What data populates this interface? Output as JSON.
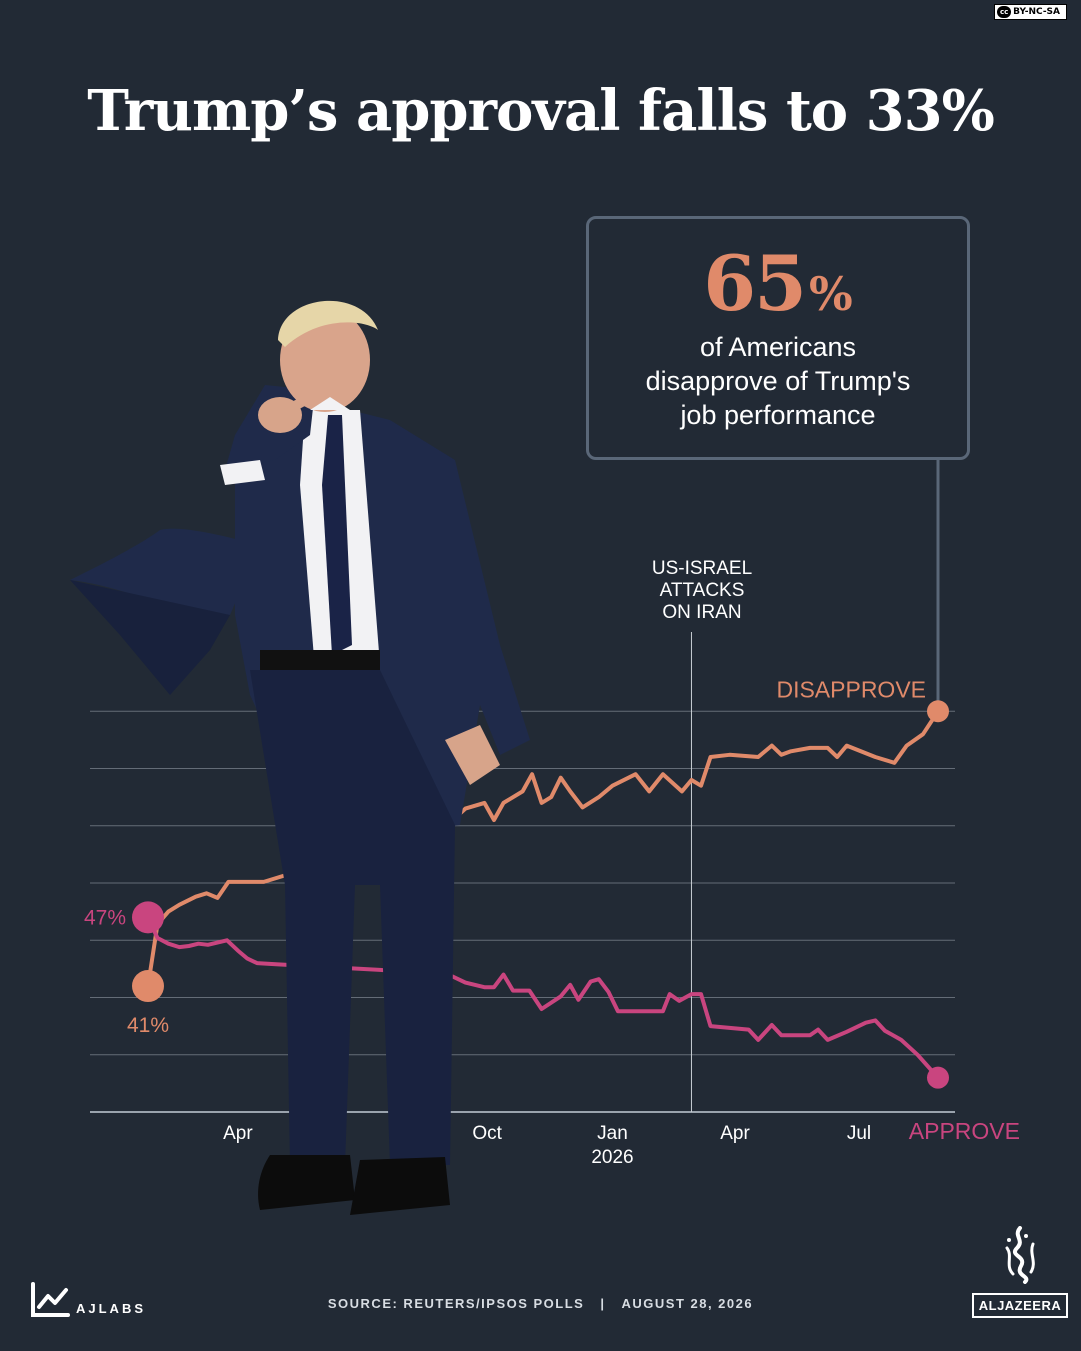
{
  "license": "BY-NC-SA",
  "license_badge": "cc",
  "title": "Trump’s approval falls to 33%",
  "callout": {
    "value": "65",
    "unit": "%",
    "text_lines": [
      "of Americans",
      "disapprove of Trump's",
      "job performance"
    ]
  },
  "event_annotation": [
    "US-ISRAEL",
    "ATTACKS",
    "ON IRAN"
  ],
  "footer": {
    "brand": "AJLABS",
    "source": "SOURCE:  REUTERS/IPSOS POLLS",
    "separator": "|",
    "date": "AUGUST 28, 2026",
    "publisher": "ALJAZEERA"
  },
  "colors": {
    "background": "#222a35",
    "disapprove": "#e08a6a",
    "approve": "#c9457f",
    "grid": "#9aa3ad",
    "callout_border": "#5a6778"
  },
  "icons": [
    "ajlabs-chart-logo-icon",
    "aljazeera-calligraphy-logo-icon",
    "creative-commons-icon",
    "trump-pointing-photo"
  ],
  "chart_data": {
    "type": "line",
    "title": "",
    "xlabel": "",
    "ylabel": "",
    "x_start": "2025-01-25",
    "x_end": "2026-08-28",
    "x_ticks": [
      {
        "date": "2025-04-01",
        "label": "Apr",
        "sublabel": ""
      },
      {
        "date": "2025-10-01",
        "label": "Oct",
        "sublabel": ""
      },
      {
        "date": "2026-01-01",
        "label": "Jan",
        "sublabel": "2026"
      },
      {
        "date": "2026-04-01",
        "label": "Apr",
        "sublabel": ""
      },
      {
        "date": "2026-07-01",
        "label": "Jul",
        "sublabel": ""
      }
    ],
    "y_range": [
      30,
      70
    ],
    "y_gridlines": [
      30,
      35,
      40,
      45,
      50,
      55,
      60,
      65
    ],
    "grid": true,
    "event": {
      "date": "2026-02-28"
    },
    "series": [
      {
        "name": "DISAPPROVE",
        "start_label": "41%",
        "values": [
          [
            "2025-01-25",
            41
          ],
          [
            "2025-02-01",
            46.4
          ],
          [
            "2025-02-09",
            47.5
          ],
          [
            "2025-02-17",
            48.1
          ],
          [
            "2025-03-01",
            48.8
          ],
          [
            "2025-03-09",
            49.1
          ],
          [
            "2025-03-17",
            48.7
          ],
          [
            "2025-03-25",
            50.1
          ],
          [
            "2025-04-05",
            50.1
          ],
          [
            "2025-04-20",
            50.1
          ],
          [
            "2025-09-01",
            55.0
          ],
          [
            "2025-09-15",
            56.5
          ],
          [
            "2025-09-29",
            57.0
          ],
          [
            "2025-10-06",
            55.5
          ],
          [
            "2025-10-13",
            57.0
          ],
          [
            "2025-10-27",
            58.0
          ],
          [
            "2025-11-03",
            59.5
          ],
          [
            "2025-11-10",
            57.0
          ],
          [
            "2025-11-17",
            57.5
          ],
          [
            "2025-11-24",
            59.2
          ],
          [
            "2025-12-01",
            58.0
          ],
          [
            "2025-12-10",
            56.6
          ],
          [
            "2025-12-22",
            57.5
          ],
          [
            "2026-01-01",
            58.5
          ],
          [
            "2026-01-18",
            59.5
          ],
          [
            "2026-01-28",
            58.0
          ],
          [
            "2026-02-07",
            59.5
          ],
          [
            "2026-02-21",
            58.0
          ],
          [
            "2026-02-28",
            59.0
          ],
          [
            "2026-03-07",
            58.5
          ],
          [
            "2026-03-14",
            61.0
          ],
          [
            "2026-03-28",
            61.2
          ],
          [
            "2026-04-18",
            61.0
          ],
          [
            "2026-04-28",
            62.0
          ],
          [
            "2026-05-05",
            61.2
          ],
          [
            "2026-05-12",
            61.5
          ],
          [
            "2026-05-26",
            61.8
          ],
          [
            "2026-06-08",
            61.8
          ],
          [
            "2026-06-15",
            61.0
          ],
          [
            "2026-06-22",
            62.0
          ],
          [
            "2026-07-13",
            61.0
          ],
          [
            "2026-07-27",
            60.5
          ],
          [
            "2026-08-05",
            62.0
          ],
          [
            "2026-08-17",
            63.0
          ],
          [
            "2026-08-28",
            65.0
          ]
        ]
      },
      {
        "name": "APPROVE",
        "start_label": "47%",
        "values": [
          [
            "2025-01-25",
            47
          ],
          [
            "2025-02-01",
            45.2
          ],
          [
            "2025-02-09",
            44.7
          ],
          [
            "2025-02-17",
            44.4
          ],
          [
            "2025-02-24",
            44.5
          ],
          [
            "2025-03-03",
            44.7
          ],
          [
            "2025-03-10",
            44.6
          ],
          [
            "2025-03-24",
            45.0
          ],
          [
            "2025-04-01",
            44.1
          ],
          [
            "2025-04-08",
            43.4
          ],
          [
            "2025-04-15",
            43.0
          ],
          [
            "2025-04-29",
            42.9
          ],
          [
            "2025-09-01",
            42.1
          ],
          [
            "2025-09-15",
            41.3
          ],
          [
            "2025-09-29",
            40.9
          ],
          [
            "2025-10-06",
            40.9
          ],
          [
            "2025-10-13",
            42.0
          ],
          [
            "2025-10-20",
            40.6
          ],
          [
            "2025-11-01",
            40.6
          ],
          [
            "2025-11-10",
            39.0
          ],
          [
            "2025-11-24",
            40.1
          ],
          [
            "2025-12-01",
            41.1
          ],
          [
            "2025-12-07",
            39.8
          ],
          [
            "2025-12-16",
            41.4
          ],
          [
            "2025-12-22",
            41.6
          ],
          [
            "2025-12-29",
            40.5
          ],
          [
            "2026-01-05",
            38.8
          ],
          [
            "2026-01-25",
            38.8
          ],
          [
            "2026-02-07",
            38.8
          ],
          [
            "2026-02-12",
            40.3
          ],
          [
            "2026-02-19",
            39.7
          ],
          [
            "2026-02-28",
            40.3
          ],
          [
            "2026-03-07",
            40.3
          ],
          [
            "2026-03-14",
            37.5
          ],
          [
            "2026-04-11",
            37.2
          ],
          [
            "2026-04-18",
            36.3
          ],
          [
            "2026-04-28",
            37.6
          ],
          [
            "2026-05-05",
            36.7
          ],
          [
            "2026-05-26",
            36.7
          ],
          [
            "2026-06-01",
            37.2
          ],
          [
            "2026-06-08",
            36.3
          ],
          [
            "2026-06-22",
            37.0
          ],
          [
            "2026-07-06",
            37.8
          ],
          [
            "2026-07-13",
            38.0
          ],
          [
            "2026-07-20",
            37.1
          ],
          [
            "2026-08-01",
            36.3
          ],
          [
            "2026-08-13",
            35.0
          ],
          [
            "2026-08-28",
            33.0
          ]
        ]
      }
    ]
  }
}
